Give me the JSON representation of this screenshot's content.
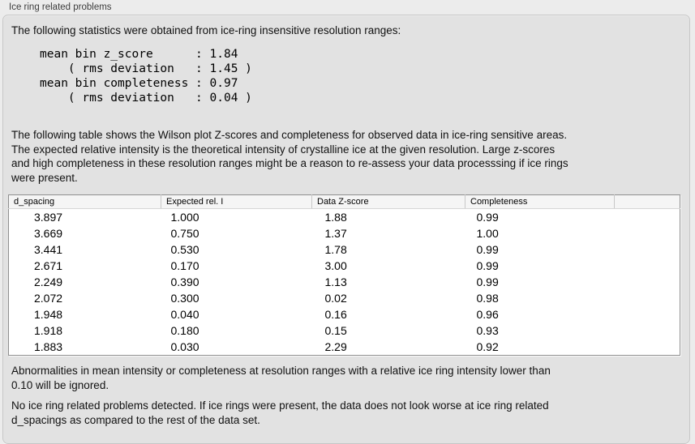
{
  "panel": {
    "title": "Ice ring related problems"
  },
  "colors": {
    "page_bg": "#ececec",
    "box_bg": "#e2e2e2",
    "table_bg": "#ffffff",
    "table_header_bg": "#f5f5f5",
    "table_border": "#8f8f8f",
    "text": "#111111"
  },
  "intro": "The following statistics were obtained from ice-ring insensitive resolution ranges:",
  "stats": {
    "block": "mean bin z_score      : 1.84\n    ( rms deviation   : 1.45 )\nmean bin completeness : 0.97\n    ( rms deviation   : 0.04 )",
    "mean_bin_z_score": "1.84",
    "z_score_rms_deviation": "1.45",
    "mean_bin_completeness": "0.97",
    "completeness_rms_deviation": "0.04"
  },
  "description": {
    "lines": [
      "The following table shows the Wilson plot Z-scores and completeness for observed data in ice-ring sensitive areas.",
      "The expected relative intensity is the theoretical intensity of crystalline ice at the given resolution. Large z-scores",
      "and high completeness in these resolution ranges might be a reason to re-assess your data processsing if ice rings",
      "were present."
    ]
  },
  "table": {
    "columns": [
      "d_spacing",
      "Expected rel. I",
      "Data Z-score",
      "Completeness",
      ""
    ],
    "rows": [
      [
        "3.897",
        "1.000",
        "1.88",
        "0.99"
      ],
      [
        "3.669",
        "0.750",
        "1.37",
        "1.00"
      ],
      [
        "3.441",
        "0.530",
        "1.78",
        "0.99"
      ],
      [
        "2.671",
        "0.170",
        "3.00",
        "0.99"
      ],
      [
        "2.249",
        "0.390",
        "1.13",
        "0.99"
      ],
      [
        "2.072",
        "0.300",
        "0.02",
        "0.98"
      ],
      [
        "1.948",
        "0.040",
        "0.16",
        "0.96"
      ],
      [
        "1.918",
        "0.180",
        "0.15",
        "0.93"
      ],
      [
        "1.883",
        "0.030",
        "2.29",
        "0.92"
      ]
    ]
  },
  "note": {
    "lines": [
      "Abnormalities in mean intensity or completeness at resolution ranges with a relative ice ring intensity lower than",
      "0.10 will be ignored."
    ]
  },
  "conclusion": {
    "lines": [
      "No ice ring related problems detected. If ice rings were present, the data does not look worse at ice ring related",
      "d_spacings as compared to the rest of the data set."
    ]
  }
}
